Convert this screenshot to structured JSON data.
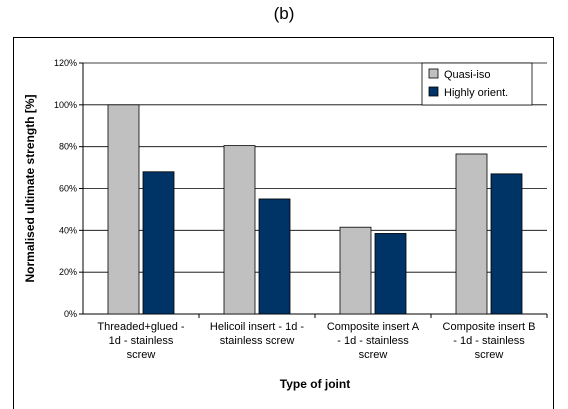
{
  "panel_label": "(b)",
  "chart_data": {
    "type": "bar",
    "categories": [
      [
        "Threaded+glued -",
        "1d - stainless",
        "screw"
      ],
      [
        "Helicoil insert - 1d -",
        "stainless screw"
      ],
      [
        "Composite insert A",
        "- 1d - stainless",
        "screw"
      ],
      [
        "Composite insert B",
        "- 1d - stainless",
        "screw"
      ]
    ],
    "series": [
      {
        "name": "Quasi-iso",
        "values": [
          100,
          80.5,
          41.5,
          76.5
        ],
        "color": "#c0c0c0"
      },
      {
        "name": "Highly orient.",
        "values": [
          68,
          55,
          38.5,
          67
        ],
        "color": "#003366"
      }
    ],
    "xlabel": "Type of joint",
    "ylabel": "Normalised ultimate strength [%]",
    "ylim": [
      0,
      120
    ],
    "yticks": [
      0,
      20,
      40,
      60,
      80,
      100,
      120
    ],
    "ytick_suffix": "%",
    "grid": true,
    "legend": "top-right"
  }
}
